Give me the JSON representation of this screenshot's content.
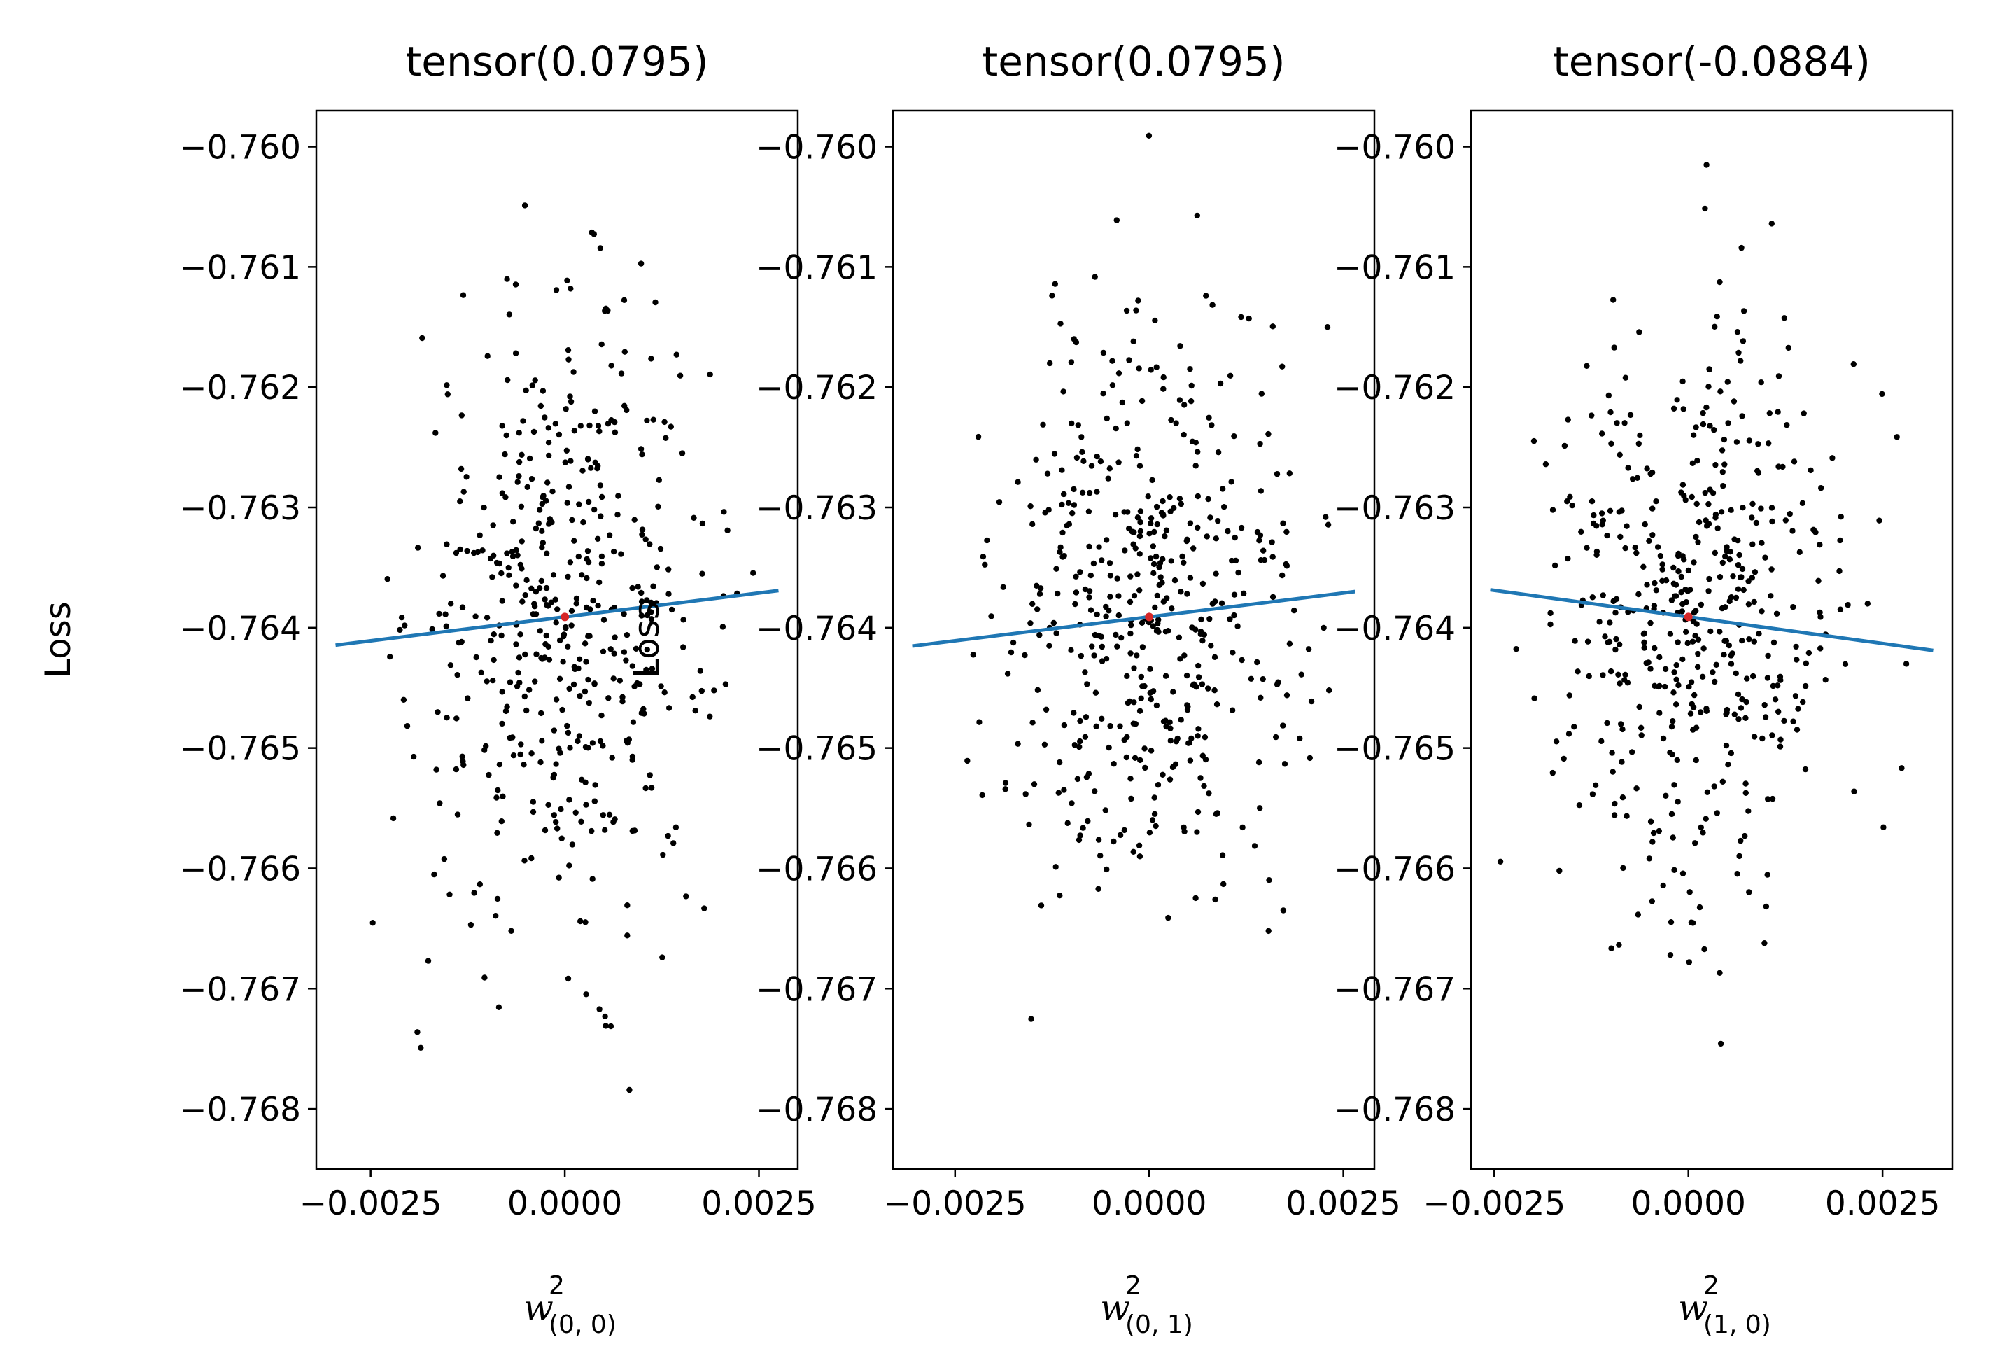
{
  "chart_data": [
    {
      "type": "scatter",
      "title": "tensor(0.0795)",
      "ylabel": "Loss",
      "xlabel": {
        "base": "w",
        "sup": "2",
        "sub": "(0, 0)"
      },
      "xlim": [
        -0.0032,
        0.003
      ],
      "ylim": [
        -0.7685,
        -0.7597
      ],
      "xticks": [
        -0.0025,
        0.0,
        0.0025
      ],
      "xtick_labels": [
        "−0.0025",
        "0.0000",
        "0.0025"
      ],
      "yticks": [
        -0.76,
        -0.761,
        -0.762,
        -0.763,
        -0.764,
        -0.765,
        -0.766,
        -0.767,
        -0.768
      ],
      "ytick_labels": [
        "−0.760",
        "−0.761",
        "−0.762",
        "−0.763",
        "−0.764",
        "−0.765",
        "−0.766",
        "−0.767",
        "−0.768"
      ],
      "series": [
        {
          "kind": "points",
          "color": "#000000"
        },
        {
          "kind": "fit-line",
          "color": "#1f77b4",
          "slope": 0.0795,
          "intercept": -0.76391
        },
        {
          "kind": "center",
          "color": "#d62728",
          "x": 0.0,
          "y": -0.76391
        }
      ]
    },
    {
      "type": "scatter",
      "title": "tensor(0.0795)",
      "ylabel": "Loss",
      "xlabel": {
        "base": "w",
        "sup": "2",
        "sub": "(0, 1)"
      },
      "xlim": [
        -0.0033,
        0.0029
      ],
      "ylim": [
        -0.7685,
        -0.7597
      ],
      "xticks": [
        -0.0025,
        0.0,
        0.0025
      ],
      "xtick_labels": [
        "−0.0025",
        "0.0000",
        "0.0025"
      ],
      "yticks": [
        -0.76,
        -0.761,
        -0.762,
        -0.763,
        -0.764,
        -0.765,
        -0.766,
        -0.767,
        -0.768
      ],
      "ytick_labels": [
        "−0.760",
        "−0.761",
        "−0.762",
        "−0.763",
        "−0.764",
        "−0.765",
        "−0.766",
        "−0.767",
        "−0.768"
      ],
      "series": [
        {
          "kind": "points",
          "color": "#000000"
        },
        {
          "kind": "fit-line",
          "color": "#1f77b4",
          "slope": 0.0795,
          "intercept": -0.76391
        },
        {
          "kind": "center",
          "color": "#d62728",
          "x": 0.0,
          "y": -0.76391
        }
      ]
    },
    {
      "type": "scatter",
      "title": "tensor(-0.0884)",
      "ylabel": "",
      "xlabel": {
        "base": "w",
        "sup": "2",
        "sub": "(1, 0)"
      },
      "xlim": [
        -0.0028,
        0.0034
      ],
      "ylim": [
        -0.7685,
        -0.7597
      ],
      "xticks": [
        -0.0025,
        0.0,
        0.0025
      ],
      "xtick_labels": [
        "−0.0025",
        "0.0000",
        "0.0025"
      ],
      "yticks": [
        -0.76,
        -0.761,
        -0.762,
        -0.763,
        -0.764,
        -0.765,
        -0.766,
        -0.767,
        -0.768
      ],
      "ytick_labels": [
        "−0.760",
        "−0.761",
        "−0.762",
        "−0.763",
        "−0.764",
        "−0.765",
        "−0.766",
        "−0.767",
        "−0.768"
      ],
      "series": [
        {
          "kind": "points",
          "color": "#000000"
        },
        {
          "kind": "fit-line",
          "color": "#1f77b4",
          "slope": -0.0884,
          "intercept": -0.76391
        },
        {
          "kind": "center",
          "color": "#d62728",
          "x": 0.0,
          "y": -0.76391
        }
      ]
    }
  ]
}
